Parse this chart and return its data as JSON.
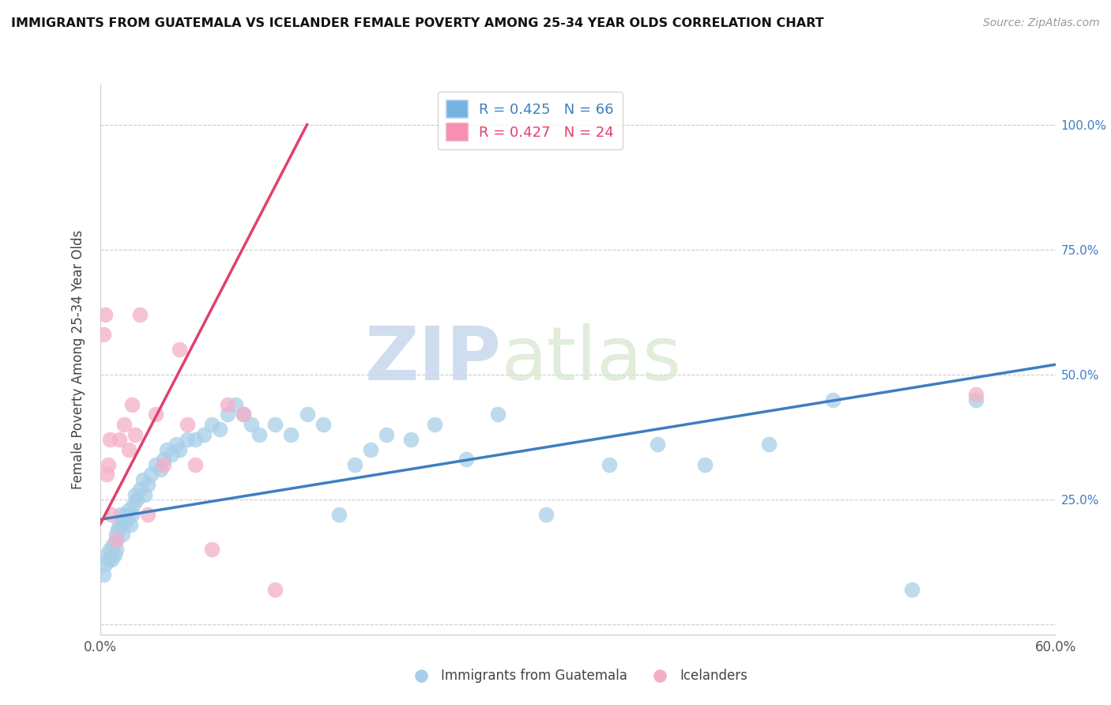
{
  "title": "IMMIGRANTS FROM GUATEMALA VS ICELANDER FEMALE POVERTY AMONG 25-34 YEAR OLDS CORRELATION CHART",
  "source": "Source: ZipAtlas.com",
  "ylabel": "Female Poverty Among 25-34 Year Olds",
  "xlim": [
    0.0,
    0.6
  ],
  "ylim": [
    -0.02,
    1.08
  ],
  "xticks": [
    0.0,
    0.1,
    0.2,
    0.3,
    0.4,
    0.5,
    0.6
  ],
  "xticklabels": [
    "0.0%",
    "",
    "",
    "",
    "",
    "",
    "60.0%"
  ],
  "yticks": [
    0.0,
    0.25,
    0.5,
    0.75,
    1.0
  ],
  "left_yticklabels": [
    "",
    "",
    "",
    "",
    ""
  ],
  "right_yticklabels": [
    "",
    "25.0%",
    "50.0%",
    "75.0%",
    "100.0%"
  ],
  "legend1_label": "R = 0.425   N = 66",
  "legend2_label": "R = 0.427   N = 24",
  "legend1_patch_color": "#74b3e0",
  "legend2_patch_color": "#f78fb3",
  "blue_scatter_color": "#a8cfe8",
  "pink_scatter_color": "#f4afc8",
  "blue_line_color": "#3d7fc1",
  "pink_line_color": "#e0416a",
  "watermark_zip": "ZIP",
  "watermark_atlas": "atlas",
  "blue_scatter_x": [
    0.002,
    0.003,
    0.004,
    0.005,
    0.006,
    0.007,
    0.008,
    0.009,
    0.01,
    0.01,
    0.01,
    0.011,
    0.012,
    0.013,
    0.014,
    0.015,
    0.016,
    0.017,
    0.018,
    0.019,
    0.02,
    0.021,
    0.022,
    0.023,
    0.025,
    0.027,
    0.028,
    0.03,
    0.032,
    0.035,
    0.038,
    0.04,
    0.042,
    0.045,
    0.048,
    0.05,
    0.055,
    0.06,
    0.065,
    0.07,
    0.075,
    0.08,
    0.085,
    0.09,
    0.095,
    0.1,
    0.11,
    0.12,
    0.13,
    0.14,
    0.15,
    0.16,
    0.17,
    0.18,
    0.195,
    0.21,
    0.23,
    0.25,
    0.28,
    0.32,
    0.35,
    0.38,
    0.42,
    0.46,
    0.51,
    0.55
  ],
  "blue_scatter_y": [
    0.1,
    0.12,
    0.14,
    0.13,
    0.15,
    0.13,
    0.16,
    0.14,
    0.18,
    0.17,
    0.15,
    0.19,
    0.2,
    0.22,
    0.18,
    0.2,
    0.22,
    0.21,
    0.23,
    0.2,
    0.22,
    0.24,
    0.26,
    0.25,
    0.27,
    0.29,
    0.26,
    0.28,
    0.3,
    0.32,
    0.31,
    0.33,
    0.35,
    0.34,
    0.36,
    0.35,
    0.37,
    0.37,
    0.38,
    0.4,
    0.39,
    0.42,
    0.44,
    0.42,
    0.4,
    0.38,
    0.4,
    0.38,
    0.42,
    0.4,
    0.22,
    0.32,
    0.35,
    0.38,
    0.37,
    0.4,
    0.33,
    0.42,
    0.22,
    0.32,
    0.36,
    0.32,
    0.36,
    0.45,
    0.07,
    0.45
  ],
  "pink_scatter_x": [
    0.002,
    0.003,
    0.004,
    0.005,
    0.006,
    0.007,
    0.01,
    0.012,
    0.015,
    0.018,
    0.02,
    0.022,
    0.025,
    0.03,
    0.035,
    0.04,
    0.05,
    0.055,
    0.06,
    0.07,
    0.08,
    0.09,
    0.11,
    0.55
  ],
  "pink_scatter_y": [
    0.58,
    0.62,
    0.3,
    0.32,
    0.37,
    0.22,
    0.17,
    0.37,
    0.4,
    0.35,
    0.44,
    0.38,
    0.62,
    0.22,
    0.42,
    0.32,
    0.55,
    0.4,
    0.32,
    0.15,
    0.44,
    0.42,
    0.07,
    0.46
  ],
  "blue_line_x": [
    0.0,
    0.6
  ],
  "blue_line_y": [
    0.21,
    0.52
  ],
  "pink_line_x": [
    0.0,
    0.13
  ],
  "pink_line_y": [
    0.2,
    1.0
  ]
}
